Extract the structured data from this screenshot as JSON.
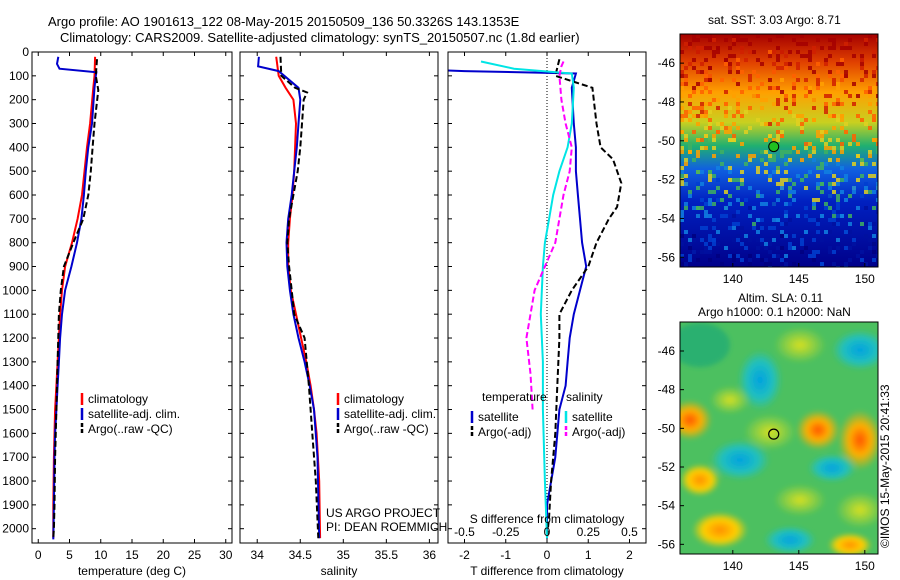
{
  "title_line1": "Argo profile: AO 1901613_122 08-May-2015 20150509_136 50.3326S 143.1353E",
  "title_line2": "Climatology: CARS2009. Satellite-adjusted climatology: synTS_20150507.nc (1.8d earlier)",
  "credit_line1": "US ARGO PROJECT",
  "credit_line2": "PI: DEAN ROEMMICH",
  "timestamp": "©IMOS 15-May-2015 20:41:33",
  "colors": {
    "red": "#ff0000",
    "blue": "#0000cc",
    "black": "#000000",
    "cyan": "#00e5e5",
    "magenta": "#ff00ff"
  },
  "chart_data": [
    {
      "type": "line",
      "xlabel": "temperature (deg C)",
      "ylabel": "",
      "xlim": [
        -1,
        31
      ],
      "ylim": [
        2060,
        0
      ],
      "xticks": [
        0,
        5,
        10,
        15,
        20,
        25,
        30
      ],
      "yticks": [
        0,
        100,
        200,
        300,
        400,
        500,
        600,
        700,
        800,
        900,
        1000,
        1100,
        1200,
        1300,
        1400,
        1500,
        1600,
        1700,
        1800,
        1900,
        2000
      ],
      "legend": [
        "climatology",
        "satellite-adj. clim.",
        "Argo(..raw -QC)"
      ],
      "legend_position": "lower-center",
      "series": [
        {
          "name": "climatology",
          "color": "red",
          "dash": "solid",
          "x": [
            9.1,
            9.0,
            8.8,
            8.3,
            7.8,
            7.4,
            7.0,
            6.3,
            5.4,
            4.3,
            3.8,
            3.5,
            3.3,
            3.1,
            2.9,
            2.7,
            2.6,
            2.5,
            2.4,
            2.4
          ],
          "y": [
            20,
            100,
            150,
            300,
            400,
            500,
            600,
            700,
            800,
            900,
            1000,
            1100,
            1200,
            1300,
            1400,
            1500,
            1600,
            1700,
            1900,
            2040
          ]
        },
        {
          "name": "satellite-adj. clim.",
          "color": "blue",
          "dash": "solid",
          "x": [
            3.2,
            3.0,
            3.4,
            9.3,
            9.2,
            9.0,
            8.6,
            8.0,
            7.6,
            7.3,
            6.9,
            6.2,
            5.3,
            4.3,
            3.8,
            3.5,
            3.3,
            3.1,
            2.9,
            2.7,
            2.6,
            2.5,
            2.4,
            2.4
          ],
          "y": [
            20,
            50,
            70,
            85,
            100,
            150,
            300,
            400,
            500,
            600,
            700,
            800,
            900,
            1000,
            1100,
            1200,
            1300,
            1400,
            1500,
            1600,
            1700,
            1900,
            2040,
            2045
          ]
        },
        {
          "name": "Argo(..raw -QC)",
          "color": "black",
          "dash": "dashed",
          "x": [
            9.4,
            9.2,
            9.6,
            9.3,
            9.0,
            8.7,
            8.4,
            8.0,
            7.2,
            5.6,
            4.1,
            3.6,
            3.3,
            3.1,
            2.9,
            2.7,
            2.6,
            2.5,
            2.4
          ],
          "y": [
            30,
            100,
            160,
            230,
            300,
            400,
            500,
            600,
            700,
            800,
            900,
            1000,
            1100,
            1300,
            1500,
            1700,
            1900,
            2000,
            2040
          ]
        }
      ]
    },
    {
      "type": "line",
      "xlabel": "salinity",
      "ylabel": "",
      "xlim": [
        33.8,
        36.1
      ],
      "ylim": [
        2060,
        0
      ],
      "xticks": [
        34,
        34.5,
        35,
        35.5,
        36
      ],
      "legend": [
        "climatology",
        "satellite-adj. clim.",
        "Argo(..raw -QC)"
      ],
      "legend_position": "lower-center",
      "series": [
        {
          "name": "climatology",
          "color": "red",
          "dash": "solid",
          "x": [
            34.22,
            34.25,
            34.33,
            34.42,
            34.45,
            34.44,
            34.43,
            34.41,
            34.38,
            34.36,
            34.36,
            34.39,
            34.45,
            34.51,
            34.57,
            34.62,
            34.66,
            34.69,
            34.72,
            34.73
          ],
          "y": [
            20,
            100,
            150,
            200,
            300,
            400,
            500,
            600,
            700,
            800,
            900,
            1000,
            1100,
            1200,
            1300,
            1400,
            1500,
            1600,
            1800,
            2040
          ]
        },
        {
          "name": "satellite-adj. clim.",
          "color": "blue",
          "dash": "solid",
          "x": [
            34.02,
            34.01,
            34.25,
            34.48,
            34.5,
            34.48,
            34.46,
            34.43,
            34.4,
            34.36,
            34.34,
            34.35,
            34.38,
            34.42,
            34.48,
            34.55,
            34.61,
            34.66,
            34.7,
            34.72
          ],
          "y": [
            20,
            60,
            80,
            150,
            200,
            300,
            400,
            500,
            600,
            700,
            800,
            900,
            1000,
            1100,
            1200,
            1300,
            1400,
            1500,
            1700,
            2040
          ]
        },
        {
          "name": "Argo(..raw -QC)",
          "color": "black",
          "dash": "dashed",
          "x": [
            34.27,
            34.28,
            34.44,
            34.58,
            34.54,
            34.52,
            34.5,
            34.47,
            34.42,
            34.37,
            34.35,
            34.37,
            34.4,
            34.43,
            34.55,
            34.6,
            34.64,
            34.68,
            34.71
          ],
          "y": [
            20,
            100,
            150,
            170,
            200,
            300,
            400,
            500,
            600,
            700,
            800,
            900,
            1000,
            1100,
            1200,
            1400,
            1600,
            1800,
            2040
          ]
        }
      ]
    },
    {
      "type": "line",
      "xlabel": "T difference from climatology",
      "x2label": "S difference from climatology",
      "ylabel": "",
      "xlim": [
        -2.4,
        2.4
      ],
      "ylim": [
        2060,
        0
      ],
      "xticks": [
        -2,
        -1,
        0,
        1,
        2
      ],
      "x2ticks": [
        -0.5,
        -0.25,
        0,
        0.25,
        0.5
      ],
      "legend_titles": [
        "temperature",
        "salinity"
      ],
      "legend": [
        "satellite",
        "Argo(-adj)",
        "satellite",
        "Argo(-adj)"
      ],
      "legend_position": "lower-center",
      "series": [
        {
          "name": "satellite",
          "group": "temperature",
          "color": "blue",
          "dash": "solid",
          "x": [
            -5.9,
            -5.9,
            -2.0,
            0.7,
            0.6,
            0.65,
            0.7,
            0.7,
            0.75,
            0.8,
            0.85,
            0.95,
            0.8,
            0.65,
            0.55,
            0.5,
            0.45,
            0.3,
            0.2,
            0.0,
            0.0
          ],
          "y": [
            20,
            55,
            80,
            90,
            150,
            300,
            400,
            500,
            600,
            700,
            800,
            900,
            1000,
            1100,
            1200,
            1300,
            1400,
            1500,
            1700,
            1900,
            2040
          ]
        },
        {
          "name": "Argo(-adj)",
          "group": "temperature",
          "color": "black",
          "dash": "dashed",
          "x": [
            0.3,
            0.2,
            1.1,
            1.2,
            1.3,
            1.6,
            1.8,
            1.7,
            1.5,
            1.2,
            1.0,
            0.6,
            0.3,
            0.3,
            0.25,
            0.2,
            0.1,
            0.05,
            0.0
          ],
          "y": [
            30,
            100,
            150,
            300,
            400,
            450,
            550,
            650,
            700,
            800,
            900,
            1000,
            1100,
            1200,
            1400,
            1600,
            1800,
            1950,
            2040
          ]
        },
        {
          "name": "satellite",
          "group": "salinity",
          "color": "cyan",
          "dash": "solid",
          "x": [
            -1.6,
            -0.8,
            0.6,
            0.65,
            0.6,
            0.5,
            0.3,
            0.15,
            0.05,
            -0.05,
            -0.1,
            -0.15,
            -0.1,
            -0.1,
            -0.05,
            0.0
          ],
          "y": [
            40,
            70,
            90,
            150,
            300,
            400,
            500,
            600,
            700,
            800,
            900,
            1100,
            1300,
            1500,
            1800,
            2040
          ]
        },
        {
          "name": "Argo(-adj)",
          "group": "salinity",
          "color": "magenta",
          "dash": "dashed",
          "x": [
            0.4,
            0.35,
            0.3,
            0.35,
            0.45,
            0.6,
            0.55,
            0.4,
            0.3,
            0.2,
            -0.05,
            -0.3,
            -0.4,
            -0.5,
            -0.4,
            -0.35
          ],
          "y": [
            40,
            60,
            100,
            200,
            300,
            400,
            500,
            600,
            700,
            800,
            900,
            1000,
            1100,
            1200,
            1350,
            1500
          ]
        }
      ]
    },
    {
      "type": "heatmap",
      "title": "sat. SST: 3.03 Argo: 8.71",
      "xlim": [
        136,
        151
      ],
      "ylim": [
        -56.5,
        -44.5
      ],
      "xticks": [
        140,
        145,
        150
      ],
      "yticks": [
        -46,
        -48,
        -50,
        -52,
        -54,
        -56
      ],
      "marker": {
        "x": 143.1,
        "y": -50.3
      },
      "colormap": "jet"
    },
    {
      "type": "heatmap",
      "title": "Altim. SLA: 0.11",
      "subtitle": "Argo h1000: 0.1 h2000: NaN",
      "xlim": [
        136,
        151
      ],
      "ylim": [
        -56.5,
        -44.5
      ],
      "xticks": [
        140,
        145,
        150
      ],
      "yticks": [
        -46,
        -48,
        -50,
        -52,
        -54,
        -56
      ],
      "marker": {
        "x": 143.1,
        "y": -50.3
      },
      "colormap": "jet"
    }
  ]
}
